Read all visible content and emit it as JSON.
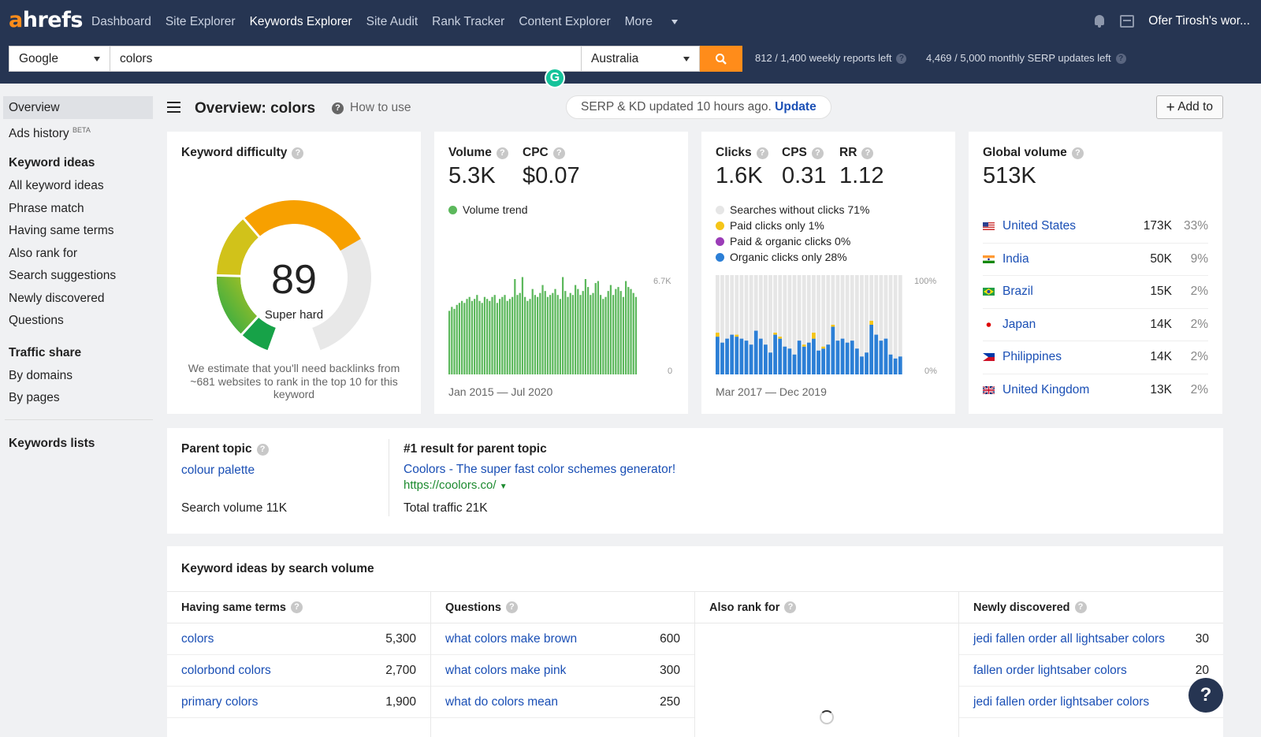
{
  "topbar": {
    "logo_a": "a",
    "logo_rest": "hrefs",
    "nav": [
      "Dashboard",
      "Site Explorer",
      "Keywords Explorer",
      "Site Audit",
      "Rank Tracker",
      "Content Explorer",
      "More"
    ],
    "active_nav": "Keywords Explorer",
    "user": "Ofer Tirosh's wor..."
  },
  "search": {
    "engine": "Google",
    "query": "colors",
    "country": "Australia",
    "weekly_reports": "812 / 1,400 weekly reports left",
    "monthly_updates": "4,469 / 5,000 monthly SERP updates left"
  },
  "sidebar": {
    "overview": "Overview",
    "ads_history": "Ads history",
    "beta": "BETA",
    "keyword_ideas_heading": "Keyword ideas",
    "keyword_ideas": [
      "All keyword ideas",
      "Phrase match",
      "Having same terms",
      "Also rank for",
      "Search suggestions",
      "Newly discovered",
      "Questions"
    ],
    "traffic_share_heading": "Traffic share",
    "traffic_share": [
      "By domains",
      "By pages"
    ],
    "keywords_lists": "Keywords lists"
  },
  "header": {
    "title": "Overview: colors",
    "how_to_use": "How to use",
    "serp_status": "SERP & KD updated 10 hours ago.",
    "update_link": "Update",
    "add_to": "Add to"
  },
  "kd": {
    "title": "Keyword difficulty",
    "score": "89",
    "score_value": 89,
    "label": "Super hard",
    "note": "We estimate that you'll need backlinks from ~681 websites to rank in the top 10 for this keyword"
  },
  "volume": {
    "volume_label": "Volume",
    "volume_value": "5.3K",
    "cpc_label": "CPC",
    "cpc_value": "$0.07",
    "trend_legend": "Volume trend",
    "y_max": "6.7K",
    "y_min": "0",
    "date_range": "Jan 2015 — Jul 2020",
    "trend_color": "#5cb85c"
  },
  "clicks": {
    "clicks_label": "Clicks",
    "clicks_value": "1.6K",
    "cps_label": "CPS",
    "cps_value": "0.31",
    "rr_label": "RR",
    "rr_value": "1.12",
    "legend": [
      {
        "label": "Searches without clicks 71%",
        "color": "#e6e6e6"
      },
      {
        "label": "Paid clicks only 1%",
        "color": "#f5c518"
      },
      {
        "label": "Paid & organic clicks 0%",
        "color": "#9b3cb7"
      },
      {
        "label": "Organic clicks only 28%",
        "color": "#2c7fd6"
      }
    ],
    "y_max": "100%",
    "y_min": "0%",
    "date_range": "Mar 2017 — Dec 2019"
  },
  "global": {
    "title": "Global volume",
    "value": "513K",
    "countries": [
      {
        "name": "United States",
        "volume": "173K",
        "pct": "33%",
        "flag": "us"
      },
      {
        "name": "India",
        "volume": "50K",
        "pct": "9%",
        "flag": "in"
      },
      {
        "name": "Brazil",
        "volume": "15K",
        "pct": "2%",
        "flag": "br"
      },
      {
        "name": "Japan",
        "volume": "14K",
        "pct": "2%",
        "flag": "jp"
      },
      {
        "name": "Philippines",
        "volume": "14K",
        "pct": "2%",
        "flag": "ph"
      },
      {
        "name": "United Kingdom",
        "volume": "13K",
        "pct": "2%",
        "flag": "gb"
      }
    ]
  },
  "parent": {
    "title": "Parent topic",
    "topic": "colour palette",
    "search_volume": "Search volume 11K",
    "result_title": "#1 result for parent topic",
    "result_link": "Coolors - The super fast color schemes generator!",
    "result_url": "https://coolors.co/",
    "total_traffic": "Total traffic 21K"
  },
  "ideas": {
    "title": "Keyword ideas by search volume",
    "columns": [
      {
        "title": "Having same terms",
        "rows": [
          {
            "kw": "colors",
            "v": "5,300"
          },
          {
            "kw": "colorbond colors",
            "v": "2,700"
          },
          {
            "kw": "primary colors",
            "v": "1,900"
          }
        ]
      },
      {
        "title": "Questions",
        "rows": [
          {
            "kw": "what colors make brown",
            "v": "600"
          },
          {
            "kw": "what colors make pink",
            "v": "300"
          },
          {
            "kw": "what do colors mean",
            "v": "250"
          }
        ]
      },
      {
        "title": "Also rank for",
        "rows": []
      },
      {
        "title": "Newly discovered",
        "rows": [
          {
            "kw": "jedi fallen order all lightsaber colors",
            "v": "30"
          },
          {
            "kw": "fallen order lightsaber colors",
            "v": "20"
          },
          {
            "kw": "jedi fallen order lightsaber colors",
            "v": ""
          }
        ]
      }
    ]
  },
  "help": "?"
}
